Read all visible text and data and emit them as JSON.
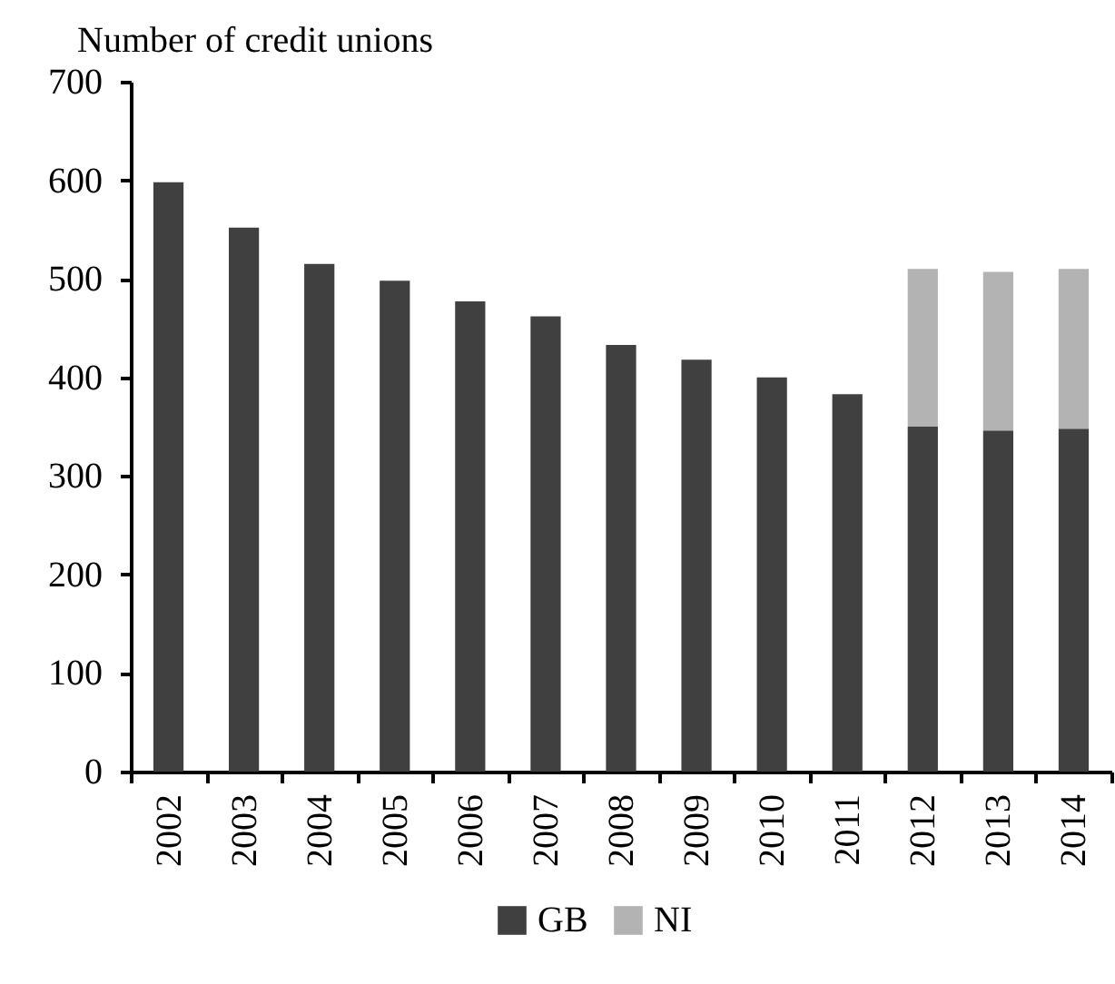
{
  "chart_data": {
    "type": "bar",
    "ylabel": "Number of credit unions",
    "categories": [
      "2002",
      "2003",
      "2004",
      "2005",
      "2006",
      "2007",
      "2008",
      "2009",
      "2010",
      "2011",
      "2012",
      "2013",
      "2014"
    ],
    "series": [
      {
        "name": "GB",
        "color": "#404040",
        "values": [
          598,
          552,
          515,
          498,
          477,
          462,
          433,
          418,
          400,
          383,
          350,
          346,
          348
        ]
      },
      {
        "name": "NI",
        "color": "#b3b3b3",
        "values": [
          null,
          null,
          null,
          null,
          null,
          null,
          null,
          null,
          null,
          null,
          160,
          161,
          162
        ]
      }
    ],
    "stacked": true,
    "ylim": [
      0,
      700
    ],
    "yticks": [
      0,
      100,
      200,
      300,
      400,
      500,
      600,
      700
    ],
    "grid": false,
    "legend": "bottom"
  }
}
